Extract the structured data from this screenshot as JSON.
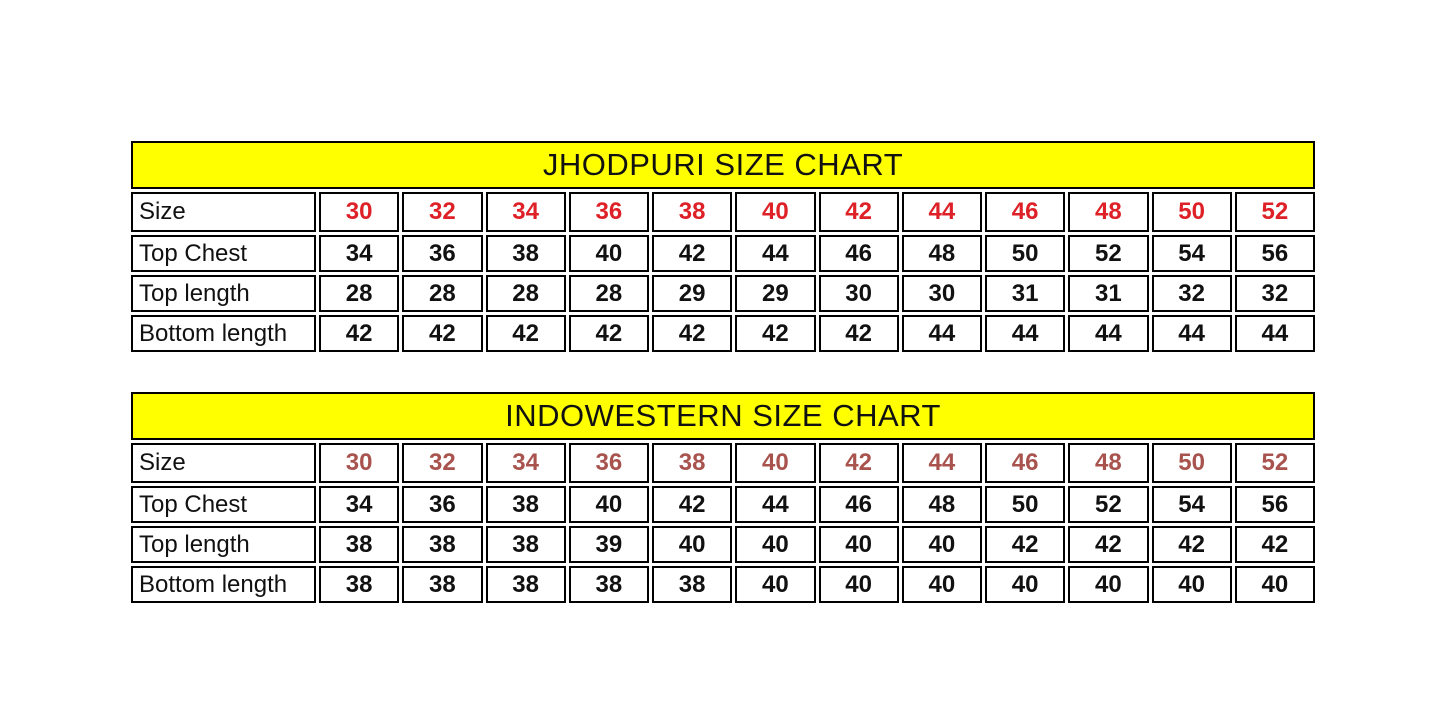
{
  "page": {
    "background": "#FFFFFF"
  },
  "colors": {
    "title_bg": "#FFFF00",
    "border": "#000000",
    "text": "#111111",
    "jhodpuri_size_row_color": "#DE2027",
    "indowestern_size_row_color": "#A8534E"
  },
  "chart_data": [
    {
      "type": "table",
      "title": "JHODPURI SIZE CHART",
      "title_bg": "#FFFF00",
      "size_row_color": "#DE2027",
      "columns": [
        "30",
        "32",
        "34",
        "36",
        "38",
        "40",
        "42",
        "44",
        "46",
        "48",
        "50",
        "52"
      ],
      "rows": [
        {
          "label": "Size",
          "values": [
            "30",
            "32",
            "34",
            "36",
            "38",
            "40",
            "42",
            "44",
            "46",
            "48",
            "50",
            "52"
          ]
        },
        {
          "label": "Top Chest",
          "values": [
            "34",
            "36",
            "38",
            "40",
            "42",
            "44",
            "46",
            "48",
            "50",
            "52",
            "54",
            "56"
          ]
        },
        {
          "label": "Top length",
          "values": [
            "28",
            "28",
            "28",
            "28",
            "29",
            "29",
            "30",
            "30",
            "31",
            "31",
            "32",
            "32"
          ]
        },
        {
          "label": "Bottom length",
          "values": [
            "42",
            "42",
            "42",
            "42",
            "42",
            "42",
            "42",
            "44",
            "44",
            "44",
            "44",
            "44"
          ]
        }
      ]
    },
    {
      "type": "table",
      "title": "INDOWESTERN SIZE CHART",
      "title_bg": "#FFFF00",
      "size_row_color": "#A8534E",
      "columns": [
        "30",
        "32",
        "34",
        "36",
        "38",
        "40",
        "42",
        "44",
        "46",
        "48",
        "50",
        "52"
      ],
      "rows": [
        {
          "label": "Size",
          "values": [
            "30",
            "32",
            "34",
            "36",
            "38",
            "40",
            "42",
            "44",
            "46",
            "48",
            "50",
            "52"
          ]
        },
        {
          "label": "Top Chest",
          "values": [
            "34",
            "36",
            "38",
            "40",
            "42",
            "44",
            "46",
            "48",
            "50",
            "52",
            "54",
            "56"
          ]
        },
        {
          "label": "Top length",
          "values": [
            "38",
            "38",
            "38",
            "39",
            "40",
            "40",
            "40",
            "40",
            "42",
            "42",
            "42",
            "42"
          ]
        },
        {
          "label": "Bottom length",
          "values": [
            "38",
            "38",
            "38",
            "38",
            "38",
            "40",
            "40",
            "40",
            "40",
            "40",
            "40",
            "40"
          ]
        }
      ]
    }
  ]
}
